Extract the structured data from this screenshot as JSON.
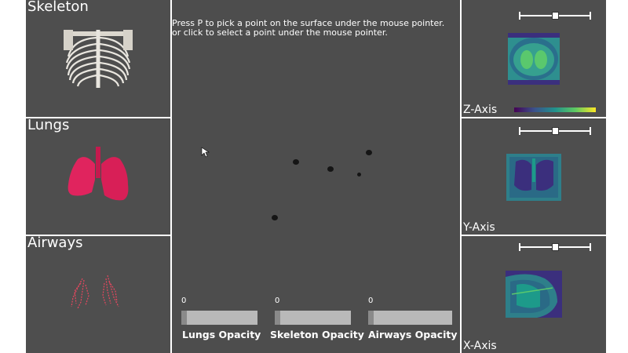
{
  "panels": {
    "skeleton": {
      "title": "Skeleton"
    },
    "lungs": {
      "title": "Lungs"
    },
    "airways": {
      "title": "Airways"
    }
  },
  "main": {
    "instruction_line1": "Press P to pick a point on the surface under the mouse pointer.",
    "instruction_line2": "or click to select a point under the mouse pointer.",
    "sliders": [
      {
        "value": "0",
        "label": "Lungs Opacity",
        "fraction": 0
      },
      {
        "value": "0",
        "label": "Skeleton Opacity",
        "fraction": 0
      },
      {
        "value": "0",
        "label": "Airways Opacity",
        "fraction": 0
      }
    ]
  },
  "axes": {
    "z": {
      "title": "Z-Axis"
    },
    "y": {
      "title": "Y-Axis"
    },
    "x": {
      "title": "X-Axis"
    }
  },
  "colors": {
    "panel_bg": "#4e4e4e",
    "lungs": "#e0245e",
    "airways": "#e8475f",
    "slice_bg": "#2e8f8f",
    "slice_dark": "#3b2f7d"
  }
}
